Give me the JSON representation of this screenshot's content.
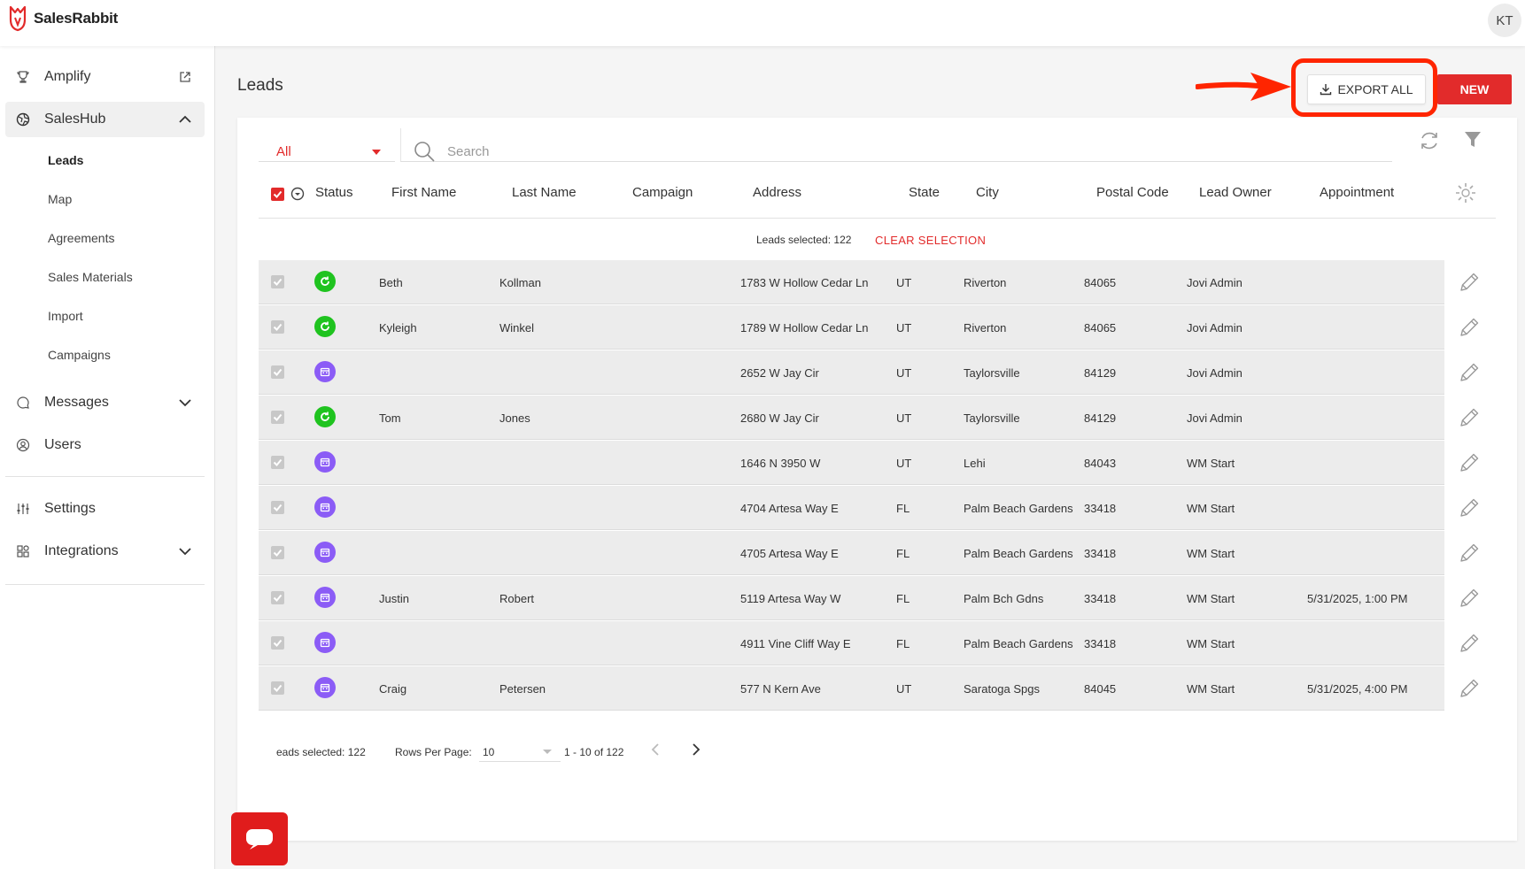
{
  "app": {
    "name": "SalesRabbit",
    "user_initials": "KT"
  },
  "sidebar": {
    "top_items": [
      {
        "label": "Amplify",
        "icon": "trophy-icon"
      },
      {
        "label": "SalesHub",
        "icon": "globe-icon"
      }
    ],
    "saleshub_sub": [
      "Leads",
      "Map",
      "Agreements",
      "Sales Materials",
      "Import",
      "Campaigns"
    ],
    "mid_items": [
      {
        "label": "Messages",
        "icon": "chat-icon"
      },
      {
        "label": "Users",
        "icon": "user-circle-icon"
      }
    ],
    "bottom_items": [
      {
        "label": "Settings",
        "icon": "sliders-icon"
      },
      {
        "label": "Integrations",
        "icon": "grid-icon"
      }
    ]
  },
  "page": {
    "title": "Leads",
    "export_label": "EXPORT ALL",
    "new_label": "NEW"
  },
  "toolbar": {
    "filter_value": "All",
    "search_placeholder": "Search"
  },
  "table": {
    "columns": [
      "Status",
      "First Name",
      "Last Name",
      "Campaign",
      "Address",
      "State",
      "City",
      "Postal Code",
      "Lead Owner",
      "Appointment"
    ],
    "selected_info": "Leads selected: 122",
    "clear_selection": "CLEAR SELECTION",
    "rows": [
      {
        "status": "green",
        "first": "Beth",
        "last": "Kollman",
        "campaign": "",
        "address": "1783 W Hollow Cedar Ln",
        "state": "UT",
        "city": "Riverton",
        "postal": "84065",
        "owner": "Jovi Admin",
        "appointment": ""
      },
      {
        "status": "green",
        "first": "Kyleigh",
        "last": "Winkel",
        "campaign": "",
        "address": "1789 W Hollow Cedar Ln",
        "state": "UT",
        "city": "Riverton",
        "postal": "84065",
        "owner": "Jovi Admin",
        "appointment": ""
      },
      {
        "status": "purple",
        "first": "",
        "last": "",
        "campaign": "",
        "address": "2652 W Jay Cir",
        "state": "UT",
        "city": "Taylorsville",
        "postal": "84129",
        "owner": "Jovi Admin",
        "appointment": ""
      },
      {
        "status": "green",
        "first": "Tom",
        "last": "Jones",
        "campaign": "",
        "address": "2680 W Jay Cir",
        "state": "UT",
        "city": "Taylorsville",
        "postal": "84129",
        "owner": "Jovi Admin",
        "appointment": ""
      },
      {
        "status": "purple",
        "first": "",
        "last": "",
        "campaign": "",
        "address": "1646 N 3950 W",
        "state": "UT",
        "city": "Lehi",
        "postal": "84043",
        "owner": "WM Start",
        "appointment": ""
      },
      {
        "status": "purple",
        "first": "",
        "last": "",
        "campaign": "",
        "address": "4704 Artesa Way E",
        "state": "FL",
        "city": "Palm Beach Gardens",
        "postal": "33418",
        "owner": "WM Start",
        "appointment": ""
      },
      {
        "status": "purple",
        "first": "",
        "last": "",
        "campaign": "",
        "address": "4705 Artesa Way E",
        "state": "FL",
        "city": "Palm Beach Gardens",
        "postal": "33418",
        "owner": "WM Start",
        "appointment": ""
      },
      {
        "status": "purple",
        "first": "Justin",
        "last": "Robert",
        "campaign": "",
        "address": "5119 Artesa Way W",
        "state": "FL",
        "city": "Palm Bch Gdns",
        "postal": "33418",
        "owner": "WM Start",
        "appointment": "5/31/2025, 1:00 PM"
      },
      {
        "status": "purple",
        "first": "",
        "last": "",
        "campaign": "",
        "address": "4911 Vine Cliff Way E",
        "state": "FL",
        "city": "Palm Beach Gardens",
        "postal": "33418",
        "owner": "WM Start",
        "appointment": ""
      },
      {
        "status": "purple",
        "first": "Craig",
        "last": "Petersen",
        "campaign": "",
        "address": "577 N Kern Ave",
        "state": "UT",
        "city": "Saratoga Spgs",
        "postal": "84045",
        "owner": "WM Start",
        "appointment": "5/31/2025, 4:00 PM"
      }
    ]
  },
  "footer": {
    "selected_info": "eads selected: 122",
    "rows_per_page_label": "Rows Per Page:",
    "rows_per_page_value": "10",
    "range": "1 - 10 of 122"
  },
  "colors": {
    "brand_red": "#e22b2b",
    "status_green": "#1fc31f",
    "status_purple": "#8b5cf6",
    "highlight": "#ff2500"
  }
}
